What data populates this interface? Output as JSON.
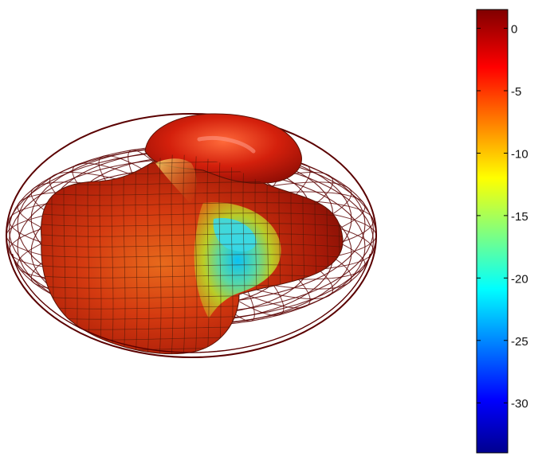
{
  "chart_data": {
    "type": "surface",
    "title": "",
    "surface": {
      "shape": "three-dimensional radiation pattern",
      "colormap": "jet",
      "wireframe_sphere_color": "#5a0000",
      "mesh_line_color": "#3a1608"
    },
    "colorbar": {
      "colormap": "jet",
      "range": [
        -34,
        1.5
      ],
      "ticks": [
        0,
        -5,
        -10,
        -15,
        -20,
        -25,
        -30
      ],
      "tick_labels": [
        "0",
        "-5",
        "-10",
        "-15",
        "-20",
        "-25",
        "-30"
      ],
      "orientation": "vertical",
      "placement": "right"
    },
    "grid": false
  }
}
